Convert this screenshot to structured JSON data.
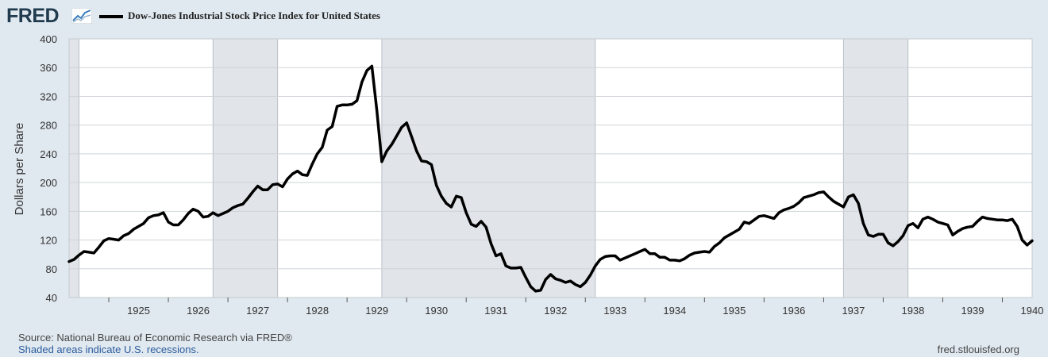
{
  "header": {
    "logo_text": "FRED",
    "series_title": "Dow-Jones Industrial Stock Price Index for United States"
  },
  "footer": {
    "source": "Source: National Bureau of Economic Research via FRED®",
    "recession_note": "Shaded areas indicate U.S. recessions.",
    "site": "fred.stlouisfed.org"
  },
  "colors": {
    "background": "#e1e9f0",
    "plot": "#ffffff",
    "recession": "#e1e5e9",
    "line": "#000000",
    "grid": "#cfd4d9"
  },
  "chart_data": {
    "type": "line",
    "title": "Dow-Jones Industrial Stock Price Index for United States",
    "ylabel": "Dollars per Share",
    "xlabel": "",
    "ylim": [
      40,
      400
    ],
    "yticks": [
      40,
      80,
      120,
      160,
      200,
      240,
      280,
      320,
      360,
      400
    ],
    "xlim": [
      "1924-05",
      "1940-07"
    ],
    "xticks": [
      "1925",
      "1926",
      "1927",
      "1928",
      "1929",
      "1930",
      "1931",
      "1932",
      "1933",
      "1934",
      "1935",
      "1936",
      "1937",
      "1938",
      "1939",
      "1940"
    ],
    "grid": true,
    "legend": "top-left",
    "recessions": [
      [
        "1924-05",
        "1924-07"
      ],
      [
        "1926-10",
        "1927-11"
      ],
      [
        "1929-08",
        "1933-03"
      ],
      [
        "1937-05",
        "1938-06"
      ]
    ],
    "series": [
      {
        "name": "Dow-Jones Industrial Stock Price Index for United States",
        "x": [
          "1924-05",
          "1924-06",
          "1924-07",
          "1924-08",
          "1924-09",
          "1924-10",
          "1924-11",
          "1924-12",
          "1925-01",
          "1925-02",
          "1925-03",
          "1925-04",
          "1925-05",
          "1925-06",
          "1925-07",
          "1925-08",
          "1925-09",
          "1925-10",
          "1925-11",
          "1925-12",
          "1926-01",
          "1926-02",
          "1926-03",
          "1926-04",
          "1926-05",
          "1926-06",
          "1926-07",
          "1926-08",
          "1926-09",
          "1926-10",
          "1926-11",
          "1926-12",
          "1927-01",
          "1927-02",
          "1927-03",
          "1927-04",
          "1927-05",
          "1927-06",
          "1927-07",
          "1927-08",
          "1927-09",
          "1927-10",
          "1927-11",
          "1927-12",
          "1928-01",
          "1928-02",
          "1928-03",
          "1928-04",
          "1928-05",
          "1928-06",
          "1928-07",
          "1928-08",
          "1928-09",
          "1928-10",
          "1928-11",
          "1928-12",
          "1929-01",
          "1929-02",
          "1929-03",
          "1929-04",
          "1929-05",
          "1929-06",
          "1929-07",
          "1929-08",
          "1929-09",
          "1929-10",
          "1929-11",
          "1929-12",
          "1930-01",
          "1930-02",
          "1930-03",
          "1930-04",
          "1930-05",
          "1930-06",
          "1930-07",
          "1930-08",
          "1930-09",
          "1930-10",
          "1930-11",
          "1930-12",
          "1931-01",
          "1931-02",
          "1931-03",
          "1931-04",
          "1931-05",
          "1931-06",
          "1931-07",
          "1931-08",
          "1931-09",
          "1931-10",
          "1931-11",
          "1931-12",
          "1932-01",
          "1932-02",
          "1932-03",
          "1932-04",
          "1932-05",
          "1932-06",
          "1932-07",
          "1932-08",
          "1932-09",
          "1932-10",
          "1932-11",
          "1932-12",
          "1933-01",
          "1933-02",
          "1933-03",
          "1933-04",
          "1933-05",
          "1933-06",
          "1933-07",
          "1933-08",
          "1933-09",
          "1933-10",
          "1933-11",
          "1933-12",
          "1934-01",
          "1934-02",
          "1934-03",
          "1934-04",
          "1934-05",
          "1934-06",
          "1934-07",
          "1934-08",
          "1934-09",
          "1934-10",
          "1934-11",
          "1934-12",
          "1935-01",
          "1935-02",
          "1935-03",
          "1935-04",
          "1935-05",
          "1935-06",
          "1935-07",
          "1935-08",
          "1935-09",
          "1935-10",
          "1935-11",
          "1935-12",
          "1936-01",
          "1936-02",
          "1936-03",
          "1936-04",
          "1936-05",
          "1936-06",
          "1936-07",
          "1936-08",
          "1936-09",
          "1936-10",
          "1936-11",
          "1936-12",
          "1937-01",
          "1937-02",
          "1937-03",
          "1937-04",
          "1937-05",
          "1937-06",
          "1937-07",
          "1937-08",
          "1937-09",
          "1937-10",
          "1937-11",
          "1937-12",
          "1938-01",
          "1938-02",
          "1938-03",
          "1938-04",
          "1938-05",
          "1938-06",
          "1938-07",
          "1938-08",
          "1938-09",
          "1938-10",
          "1938-11",
          "1938-12",
          "1939-01",
          "1939-02",
          "1939-03",
          "1939-04",
          "1939-05",
          "1939-06",
          "1939-07",
          "1939-08",
          "1939-09",
          "1939-10",
          "1939-11",
          "1939-12",
          "1940-01",
          "1940-02",
          "1940-03",
          "1940-04",
          "1940-05",
          "1940-06",
          "1940-07"
        ],
        "values": [
          90,
          93,
          99,
          104,
          103,
          102,
          110,
          119,
          122,
          121,
          120,
          126,
          129,
          135,
          139,
          143,
          151,
          154,
          155,
          158,
          145,
          141,
          141,
          148,
          157,
          163,
          160,
          152,
          153,
          158,
          154,
          157,
          160,
          165,
          168,
          170,
          178,
          187,
          195,
          190,
          190,
          197,
          198,
          194,
          205,
          212,
          216,
          211,
          210,
          226,
          240,
          249,
          273,
          278,
          306,
          308,
          308,
          309,
          314,
          340,
          356,
          362,
          300,
          229,
          244,
          253,
          265,
          277,
          283,
          264,
          244,
          230,
          229,
          225,
          196,
          181,
          171,
          166,
          181,
          179,
          158,
          142,
          139,
          146,
          138,
          115,
          98,
          101,
          84,
          81,
          81,
          82,
          68,
          55,
          49,
          50,
          65,
          72,
          66,
          64,
          61,
          63,
          58,
          55,
          61,
          71,
          84,
          93,
          97,
          98,
          98,
          92,
          95,
          98,
          101,
          104,
          107,
          101,
          101,
          96,
          96,
          92,
          92,
          91,
          94,
          99,
          102,
          103,
          104,
          103,
          111,
          116,
          123,
          127,
          131,
          135,
          145,
          143,
          148,
          153,
          154,
          152,
          150,
          158,
          162,
          164,
          167,
          172,
          179,
          181,
          183,
          186,
          187,
          180,
          174,
          170,
          166,
          180,
          183,
          171,
          143,
          127,
          125,
          128,
          128,
          116,
          112,
          118,
          126,
          140,
          143,
          137,
          149,
          152,
          149,
          145,
          143,
          141,
          127,
          132,
          136,
          138,
          139,
          146,
          152,
          150,
          149,
          148,
          148,
          147,
          149,
          139,
          120,
          113,
          119
        ]
      }
    ]
  }
}
